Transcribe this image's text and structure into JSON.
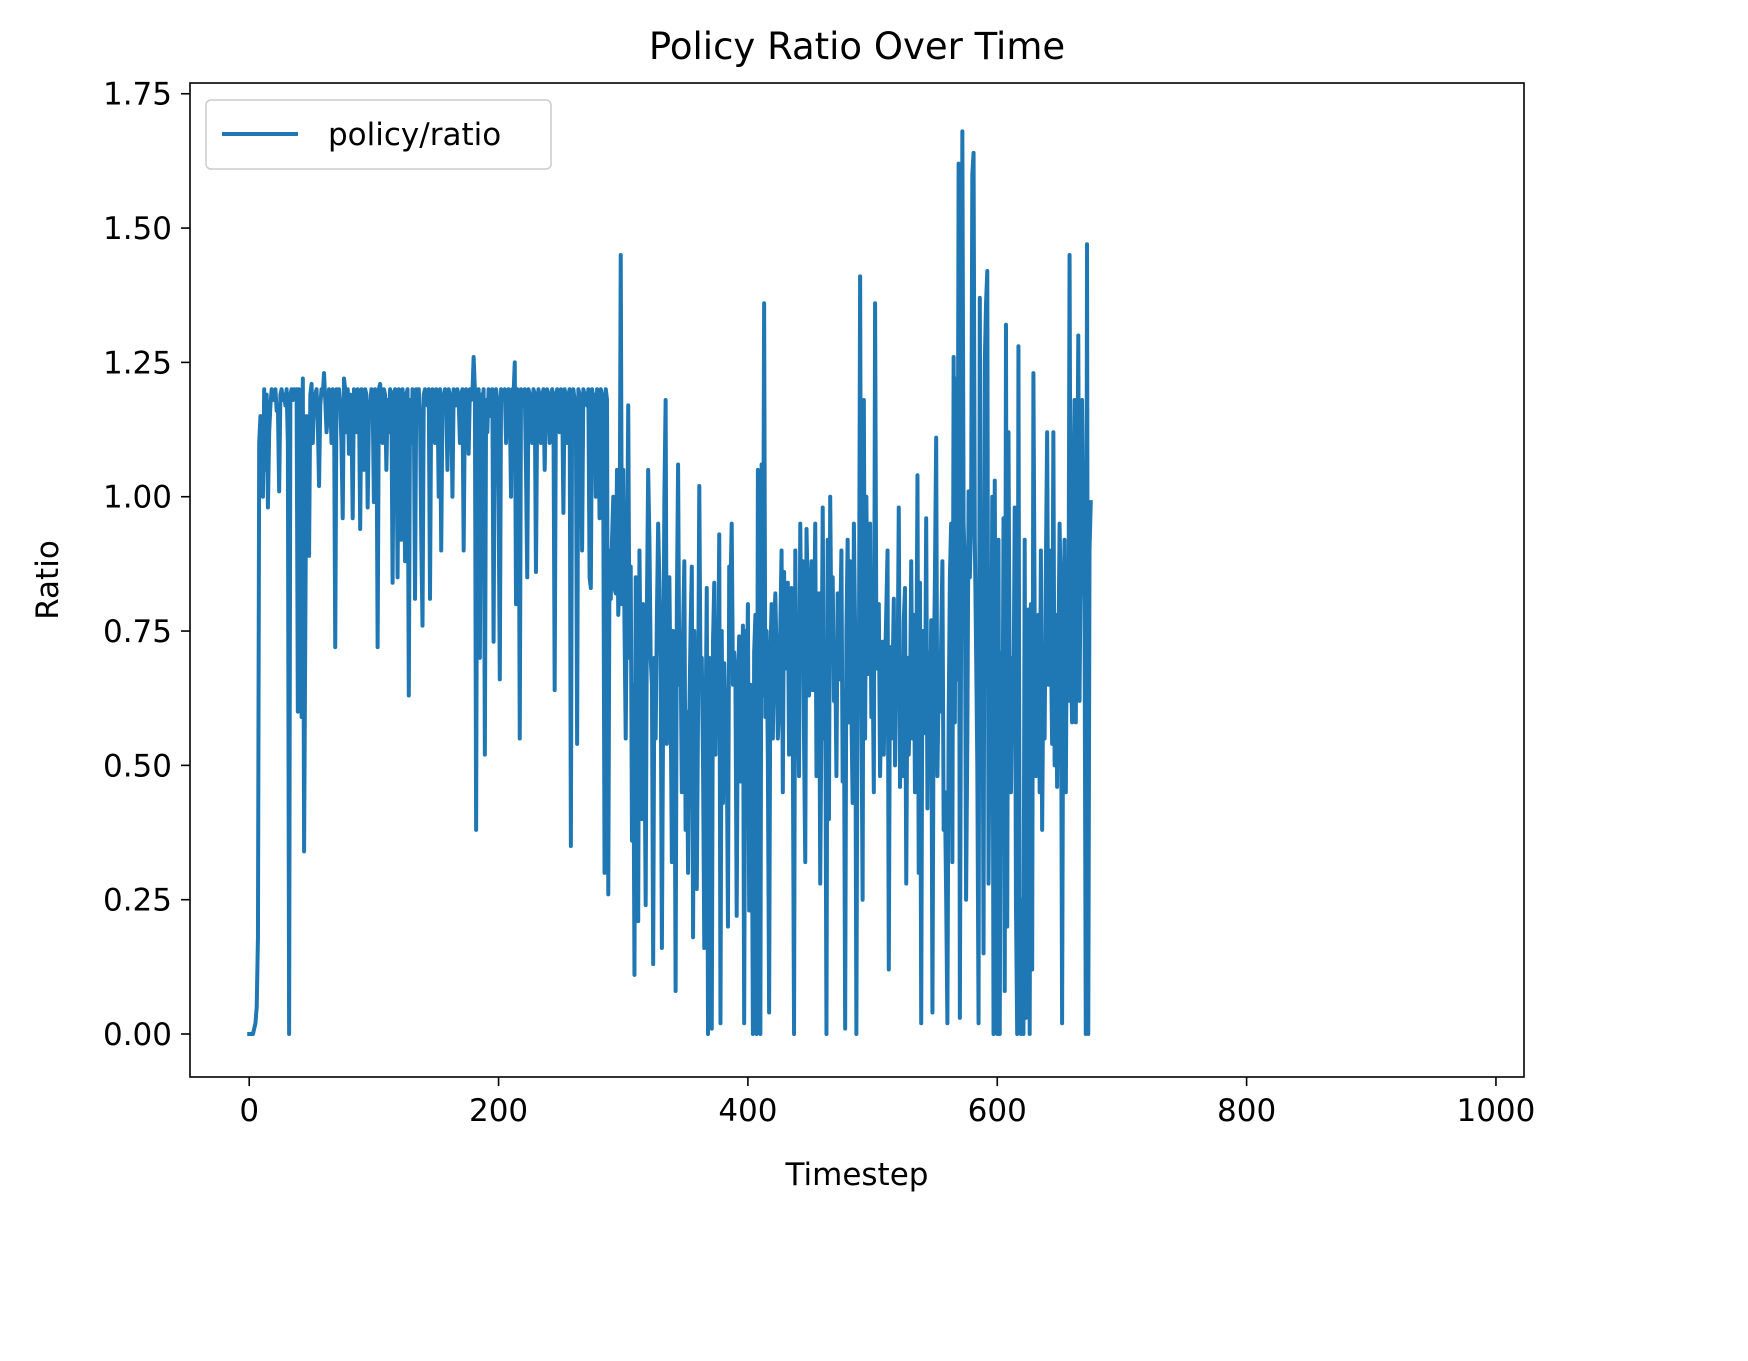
{
  "chart_data": {
    "type": "line",
    "title": "Policy Ratio Over Time",
    "xlabel": "Timestep",
    "ylabel": "Ratio",
    "xlim": [
      -47.5,
      1022.5
    ],
    "ylim": [
      -0.08,
      1.77
    ],
    "x_ticks": [
      0,
      200,
      400,
      600,
      800,
      1000
    ],
    "y_ticks": [
      0.0,
      0.25,
      0.5,
      0.75,
      1.0,
      1.25,
      1.5,
      1.75
    ],
    "x_tick_labels": [
      "0",
      "200",
      "400",
      "600",
      "800",
      "1000"
    ],
    "y_tick_labels": [
      "0.00",
      "0.25",
      "0.50",
      "0.75",
      "1.00",
      "1.25",
      "1.50",
      "1.75"
    ],
    "grid": false,
    "legend_position": "upper-left",
    "series": [
      {
        "name": "policy/ratio",
        "color": "#1f77b4",
        "x_start": 0,
        "x_step": 1,
        "values": [
          0,
          0,
          0,
          0,
          0.01,
          0.02,
          0.05,
          0.18,
          1.1,
          1.15,
          1.03,
          1.0,
          1.2,
          1.05,
          1.19,
          0.98,
          1.12,
          1.17,
          1.2,
          1.19,
          1.18,
          1.2,
          1.16,
          1.17,
          1.01,
          1.19,
          1.2,
          1.18,
          1.19,
          1.17,
          1.2,
          1.1,
          0,
          1.19,
          1.2,
          1.18,
          1.2,
          1.19,
          1.2,
          0.6,
          1.2,
          1.18,
          0.59,
          1.22,
          0.34,
          0.76,
          1.15,
          1.12,
          0.89,
          1.19,
          1.21,
          1.1,
          1.18,
          1.19,
          1.2,
          1.14,
          1.02,
          1.17,
          1.2,
          1.19,
          1.23,
          1.18,
          1.12,
          1.15,
          1.2,
          1.18,
          1.1,
          1.2,
          1.19,
          0.72,
          1.2,
          1.18,
          1.2,
          1.17,
          1.1,
          0.96,
          1.22,
          1.2,
          1.12,
          1.2,
          1.08,
          1.19,
          1.15,
          0.96,
          1.2,
          1.18,
          1.12,
          1.2,
          1.19,
          0.94,
          1.2,
          1.18,
          1.05,
          1.2,
          1.19,
          0.98,
          1.15,
          1.17,
          1.2,
          1.18,
          0.99,
          1.2,
          1.19,
          0.72,
          1.2,
          1.21,
          1.18,
          1.1,
          1.2,
          1.19,
          1.05,
          1.18,
          1.12,
          1.2,
          1.19,
          0.84,
          1.19,
          1.2,
          1.15,
          0.85,
          1.2,
          1.18,
          0.92,
          1.2,
          1.15,
          0.88,
          1.19,
          1.2,
          0.63,
          1.18,
          1.1,
          1.2,
          1.17,
          0.81,
          1.2,
          1.19,
          1.2,
          1.15,
          0.92,
          0.76,
          1.19,
          1.2,
          1.18,
          1.17,
          1.2,
          0.81,
          1.19,
          1.2,
          1.18,
          1.1,
          1.2,
          1.19,
          1.0,
          1.2,
          0.9,
          1.18,
          1.19,
          1.2,
          1.17,
          1.05,
          1.2,
          1.19,
          1.18,
          1.0,
          1.2,
          1.19,
          1.17,
          1.2,
          1.18,
          1.1,
          1.19,
          1.2,
          0.9,
          1.17,
          1.2,
          1.19,
          1.08,
          1.2,
          1.18,
          1.19,
          1.26,
          1.2,
          0.38,
          1.18,
          1.2,
          0.7,
          1.19,
          1.17,
          1.2,
          0.52,
          1.18,
          1.12,
          1.2,
          1.19,
          1.15,
          1.2,
          0.73,
          1.19,
          1.2,
          1.18,
          1.0,
          0.66,
          1.2,
          1.19,
          1.18,
          1.2,
          1.1,
          1.19,
          1.2,
          1.17,
          1.0,
          1.2,
          1.19,
          1.25,
          0.8,
          1.2,
          1.18,
          0.55,
          1.2,
          1.19,
          1.17,
          1.2,
          1.05,
          0.85,
          1.2,
          1.19,
          1.18,
          1.1,
          1.2,
          1.19,
          0.86,
          1.17,
          1.2,
          1.18,
          1.1,
          1.19,
          1.2,
          1.05,
          1.18,
          1.2,
          1.19,
          1.1,
          1.18,
          1.2,
          1.17,
          0.64,
          1.19,
          1.2,
          1.18,
          1.12,
          1.2,
          1.19,
          0.97,
          1.2,
          1.18,
          1.1,
          1.19,
          1.2,
          0.35,
          1.19,
          1.2,
          1.18,
          1.17,
          0.54,
          1.2,
          1.19,
          1.18,
          0.9,
          1.2,
          1.19,
          1.18,
          1.17,
          1.2,
          0.85,
          0.83,
          1.2,
          1.18,
          1.19,
          1.0,
          1.2,
          1.18,
          0.96,
          1.2,
          1.19,
          1.0,
          0.3,
          1.2,
          1.18,
          0.26,
          0.9,
          0.81,
          0.92,
          1.0,
          0.83,
          0.82,
          1.05,
          0.78,
          0.85,
          1.45,
          0.8,
          1.05,
          0.76,
          0.55,
          0.85,
          1.17,
          0.7,
          0.87,
          0.36,
          0.65,
          0.11,
          0.85,
          0.6,
          0.21,
          0.9,
          0.68,
          0.4,
          0.8,
          0.56,
          0.24,
          0.8,
          1.05,
          0.92,
          0.7,
          0.65,
          0.13,
          0.7,
          0.55,
          0.78,
          0.95,
          0.84,
          0.7,
          0.16,
          0.6,
          1.0,
          1.18,
          0.54,
          0.73,
          0.85,
          0.63,
          0.32,
          0.75,
          0.67,
          0.08,
          0.8,
          1.06,
          0.65,
          0.72,
          0.45,
          0.75,
          0.88,
          0.38,
          0.6,
          0.3,
          0.59,
          0.75,
          0.87,
          0.18,
          0.75,
          0.6,
          0.27,
          0.6,
          1.02,
          0.65,
          0.7,
          0.5,
          0.16,
          0.55,
          0.83,
          0.0,
          0.7,
          0.6,
          0.01,
          0.73,
          0.84,
          0.52,
          0.7,
          0.65,
          0.93,
          0.02,
          0.75,
          0.43,
          0.69,
          0.58,
          0.55,
          0.2,
          0.87,
          0.83,
          0.95,
          0.65,
          0.71,
          0.65,
          0.22,
          0.65,
          0.74,
          0.47,
          0.58,
          0.76,
          0.02,
          0.75,
          0.63,
          0.8,
          0.23,
          0.65,
          0.51,
          0.0,
          0.71,
          0.78,
          0.0,
          1.05,
          0.62,
          0.0,
          1.06,
          0.63,
          1.36,
          0.59,
          0.75,
          0.51,
          0.04,
          0.7,
          0.8,
          0.55,
          0.75,
          0.82,
          0.7,
          0.55,
          0.61,
          0.76,
          0.9,
          0.45,
          0.86,
          0.72,
          0.68,
          0.84,
          0.52,
          0.78,
          0.83,
          0.55,
          0.0,
          0.9,
          0.62,
          0.65,
          0.48,
          0.95,
          0.7,
          0.88,
          0.55,
          0.32,
          0.94,
          0.82,
          0.63,
          0.78,
          0.88,
          0.64,
          0.72,
          0.95,
          0.48,
          0.65,
          0.82,
          0.28,
          0.61,
          0.98,
          0.55,
          0.68,
          0.0,
          0.92,
          0.4,
          1.0,
          0.73,
          0.85,
          0.62,
          0.72,
          0.48,
          0.82,
          0.66,
          0.76,
          0.9,
          0.47,
          0.64,
          0.01,
          0.75,
          0.92,
          0.58,
          0.88,
          0.6,
          0.43,
          0.95,
          0.75,
          0.0,
          0.71,
          0.65,
          1.41,
          0.62,
          0.25,
          1.18,
          0.55,
          1.0,
          0.78,
          0.67,
          0.95,
          0.59,
          0.7,
          0.45,
          1.36,
          0.75,
          0.68,
          0.8,
          0.48,
          0.62,
          0.73,
          0.52,
          0.68,
          0.79,
          0.9,
          0.12,
          0.72,
          0.55,
          0.66,
          0.81,
          0.5,
          0.72,
          0.65,
          0.98,
          0.46,
          0.6,
          0.48,
          0.77,
          0.83,
          0.28,
          0.7,
          0.52,
          0.62,
          0.88,
          0.55,
          0.78,
          0.45,
          0.62,
          1.04,
          0.3,
          0.84,
          0.02,
          0.75,
          0.68,
          0.56,
          0.96,
          0.42,
          0.71,
          0.52,
          0.77,
          0.04,
          0.65,
          0.85,
          1.11,
          0.48,
          0.65,
          0.6,
          0.73,
          0.88,
          0.38,
          0.45,
          0.26,
          0.02,
          0.58,
          0.85,
          0.95,
          0.32,
          1.26,
          0.58,
          1.22,
          0.66,
          1.62,
          0.03,
          0.75,
          1.68,
          0.95,
          0.87,
          0.25,
          0.55,
          1.01,
          0.85,
          0.95,
          1.6,
          1.64,
          0.92,
          0.72,
          0.5,
          0.02,
          1.37,
          0.62,
          0.85,
          0.15,
          1.25,
          1.36,
          1.42,
          0.28,
          0.65,
          0.52,
          1.0,
          0.0,
          1.03,
          0.45,
          0.0,
          0.92,
          0.0,
          0.71,
          0.35,
          0.96,
          0.08,
          1.32,
          0.2,
          1.12,
          0.62,
          0.45,
          0.7,
          0.58,
          0.98,
          0.24,
          0.0,
          1.28,
          0.16,
          0.0,
          0.25,
          0.0,
          0.92,
          0.03,
          0.5,
          0.79,
          0.0,
          0.8,
          0.12,
          1.23,
          0.78,
          0.48,
          0.65,
          0.78,
          0.45,
          0.9,
          0.38,
          0.68,
          0.55,
          0.87,
          1.12,
          0.65,
          0.9,
          0.73,
          0.54,
          1.12,
          0.5,
          0.78,
          0.46,
          0.7,
          0.95,
          0.81,
          0.02,
          0.75,
          0.92,
          0.45,
          0.88,
          0.62,
          1.45,
          0.72,
          0.58,
          0.98,
          1.18,
          0.58,
          0.92,
          1.3,
          0.62,
          0.92,
          1.18,
          0.95,
          0.8,
          0.0,
          1.47,
          0.0,
          0.9,
          0.99
        ]
      }
    ]
  }
}
